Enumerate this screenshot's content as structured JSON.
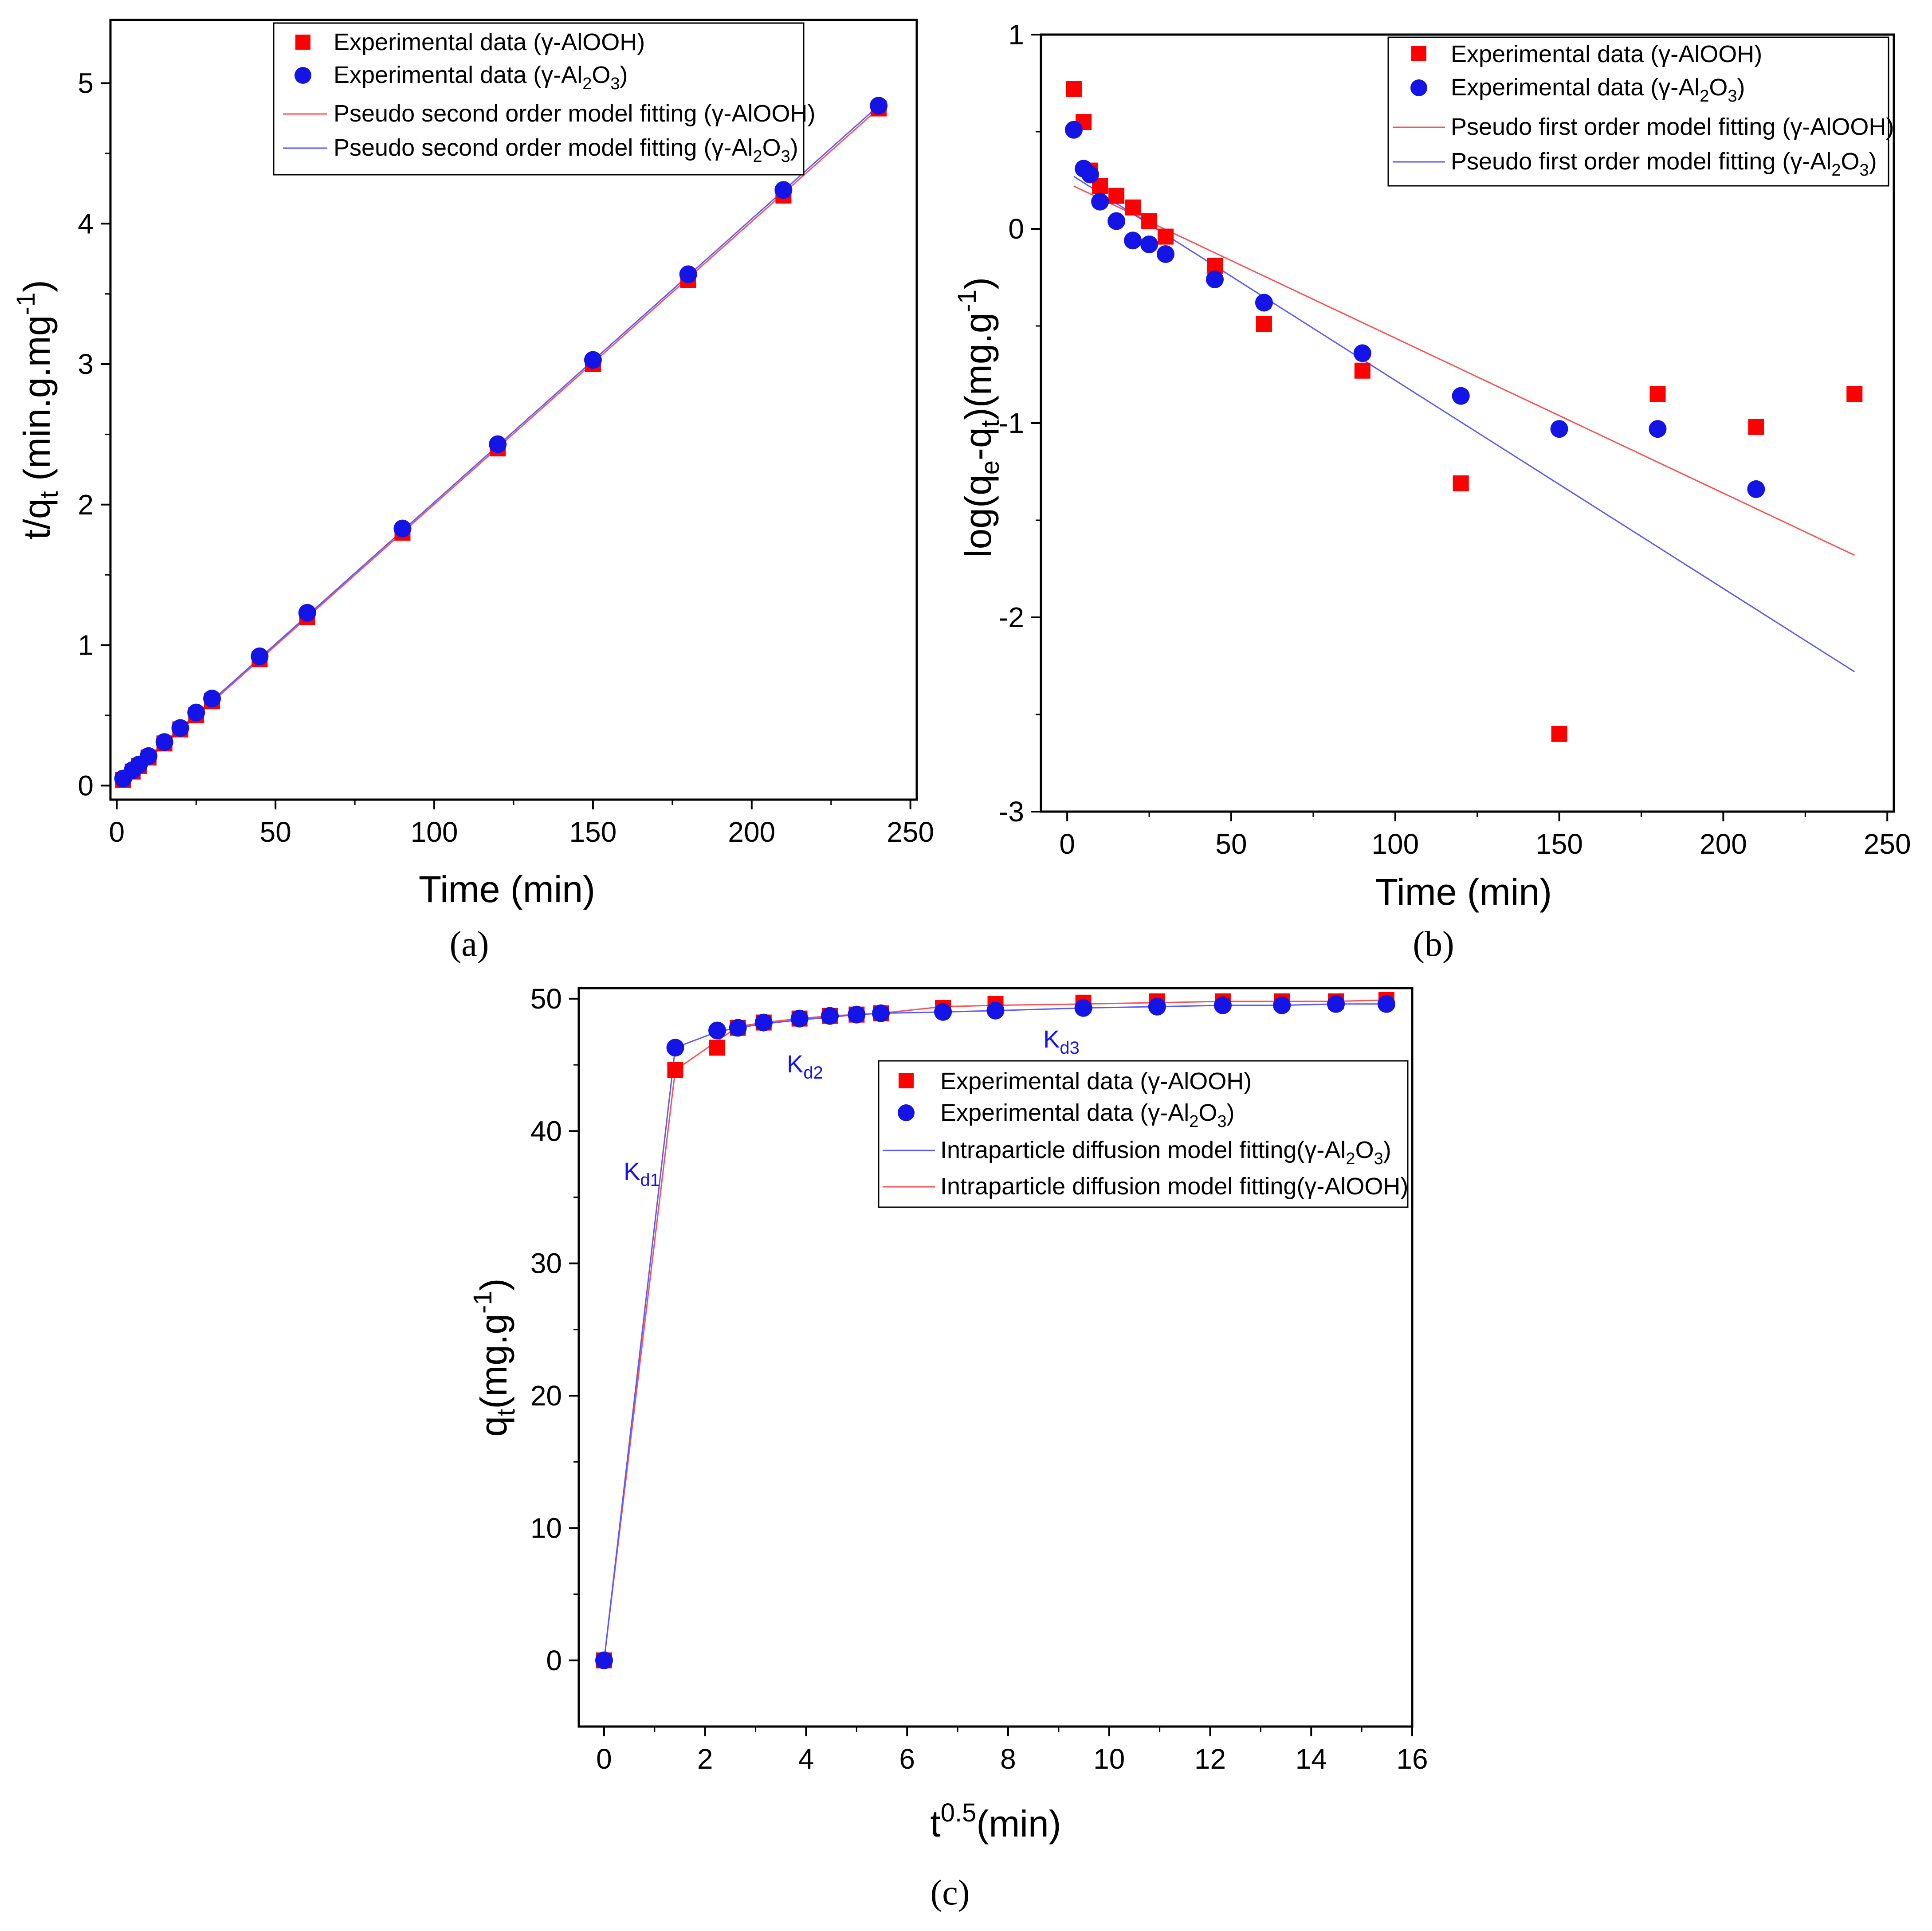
{
  "colors": {
    "red": "#ff0000",
    "blue": "#1414e6",
    "redLine": "#ff5050",
    "blueLine": "#5a5aff"
  },
  "chart_data": [
    {
      "id": "a",
      "type": "scatter",
      "panel_label": "(a)",
      "xlabel": "Time (min)",
      "ylabel_main": "t/q",
      "ylabel_sub": "t",
      "ylabel_rest": " (min.g.mg",
      "ylabel_sup": "-1",
      "ylabel_end": ")",
      "xlim": [
        -2,
        252
      ],
      "ylim": [
        -0.1,
        5.45
      ],
      "xticks": [
        0,
        50,
        100,
        150,
        200,
        250
      ],
      "yticks": [
        0,
        1,
        2,
        3,
        4,
        5
      ],
      "legend": [
        {
          "main": "Experimental data (γ-AlOOH)",
          "kind": "square",
          "color": "red"
        },
        {
          "main": "Experimental data (γ-Al",
          "sub1": "2",
          "mid": "O",
          "sub2": "3",
          "end": ")",
          "kind": "circle",
          "color": "blue"
        },
        {
          "main": "Pseudo second order model fitting (γ-AlOOH)",
          "kind": "line",
          "color": "redLine"
        },
        {
          "main": "Pseudo second order model fitting (γ-Al",
          "sub1": "2",
          "mid": "O",
          "sub2": "3",
          "end": ")",
          "kind": "line",
          "color": "blueLine"
        }
      ],
      "series": [
        {
          "name": "Experimental data (γ-AlOOH)",
          "kind": "square",
          "color": "red",
          "x": [
            2,
            5,
            7,
            10,
            15,
            20,
            25,
            30,
            45,
            60,
            90,
            120,
            150,
            180,
            210,
            240
          ],
          "y": [
            0.04,
            0.1,
            0.14,
            0.2,
            0.3,
            0.4,
            0.5,
            0.6,
            0.9,
            1.2,
            1.8,
            2.4,
            3.0,
            3.6,
            4.2,
            4.82
          ]
        },
        {
          "name": "Experimental data (γ-Al2O3)",
          "kind": "circle",
          "color": "blue",
          "x": [
            2,
            5,
            7,
            10,
            15,
            20,
            25,
            30,
            45,
            60,
            90,
            120,
            150,
            180,
            210,
            240
          ],
          "y": [
            0.05,
            0.11,
            0.15,
            0.21,
            0.31,
            0.41,
            0.52,
            0.62,
            0.92,
            1.23,
            1.83,
            2.43,
            3.03,
            3.64,
            4.24,
            4.84
          ]
        },
        {
          "name": "Pseudo second order model fitting (γ-AlOOH)",
          "kind": "line",
          "color": "redLine",
          "x": [
            2,
            240
          ],
          "y": [
            0.03,
            4.82
          ]
        },
        {
          "name": "Pseudo second order model fitting (γ-Al2O3)",
          "kind": "line",
          "color": "blueLine",
          "x": [
            2,
            240
          ],
          "y": [
            0.04,
            4.84
          ]
        }
      ]
    },
    {
      "id": "b",
      "type": "scatter",
      "panel_label": "(b)",
      "xlabel": "Time (min)",
      "ylabel_main": "log(q",
      "ylabel_sub": "e",
      "ylabel_rest": "-q",
      "ylabel_sub2": "t",
      "ylabel_end": ")(mg.g",
      "ylabel_sup": "-1",
      "ylabel_close": ")",
      "xlim": [
        -8,
        252
      ],
      "ylim": [
        -3,
        1
      ],
      "xticks": [
        0,
        50,
        100,
        150,
        200,
        250
      ],
      "yticks": [
        1,
        0,
        -1,
        -2,
        -3
      ],
      "legend": [
        {
          "main": "Experimental data (γ-AlOOH)",
          "kind": "square",
          "color": "red"
        },
        {
          "main": "Experimental data (γ-Al",
          "sub1": "2",
          "mid": "O",
          "sub2": "3",
          "end": ")",
          "kind": "circle",
          "color": "blue"
        },
        {
          "main": "Pseudo first order model fitting (γ-AlOOH)",
          "kind": "line",
          "color": "redLine"
        },
        {
          "main": "Pseudo first order model fitting (γ-Al",
          "sub1": "2",
          "mid": "O",
          "sub2": "3",
          "end": ")",
          "kind": "line",
          "color": "blueLine"
        }
      ],
      "series": [
        {
          "name": "Experimental data (γ-AlOOH)",
          "kind": "square",
          "color": "red",
          "x": [
            2,
            5,
            7,
            10,
            15,
            20,
            25,
            30,
            45,
            60,
            90,
            120,
            150,
            180,
            210,
            240
          ],
          "y": [
            0.72,
            0.55,
            0.3,
            0.22,
            0.17,
            0.11,
            0.04,
            -0.04,
            -0.19,
            -0.49,
            -0.73,
            -1.31,
            -2.6,
            -0.85,
            -1.02,
            -0.85
          ]
        },
        {
          "name": "Experimental data (γ-Al2O3)",
          "kind": "circle",
          "color": "blue",
          "x": [
            2,
            5,
            7,
            10,
            15,
            20,
            25,
            30,
            45,
            60,
            90,
            120,
            150,
            180,
            210
          ],
          "y": [
            0.51,
            0.31,
            0.28,
            0.14,
            0.04,
            -0.06,
            -0.08,
            -0.13,
            -0.26,
            -0.38,
            -0.64,
            -0.86,
            -1.03,
            -1.03,
            -1.34
          ]
        },
        {
          "name": "Pseudo first order model fitting (γ-AlOOH)",
          "kind": "line",
          "color": "redLine",
          "x": [
            2,
            240
          ],
          "y": [
            0.22,
            -1.68
          ]
        },
        {
          "name": "Pseudo first order model fitting (γ-Al2O3)",
          "kind": "line",
          "color": "blueLine",
          "x": [
            2,
            240
          ],
          "y": [
            0.27,
            -2.28
          ]
        }
      ]
    },
    {
      "id": "c",
      "type": "scatter",
      "panel_label": "(c)",
      "xlabel_main": "t",
      "xlabel_sup": "0.5",
      "xlabel_end": "(min)",
      "ylabel_main": "q",
      "ylabel_sub": "t",
      "ylabel_rest": "(mg.g",
      "ylabel_sup": "-1",
      "ylabel_end": ")",
      "xlim": [
        -0.5,
        16
      ],
      "ylim": [
        -5,
        50.8
      ],
      "xticks": [
        0,
        2,
        4,
        6,
        8,
        10,
        12,
        14,
        16
      ],
      "yticks": [
        0,
        10,
        20,
        30,
        40,
        50
      ],
      "annotations": [
        {
          "main": "K",
          "sub": "d1"
        },
        {
          "main": "K",
          "sub": "d2"
        },
        {
          "main": "K",
          "sub": "d3"
        }
      ],
      "legend": [
        {
          "main": "Experimental data (γ-AlOOH)",
          "kind": "square",
          "color": "red"
        },
        {
          "main": "Experimental data (γ-Al",
          "sub1": "2",
          "mid": "O",
          "sub2": "3",
          "end": ")",
          "kind": "circle",
          "color": "blue"
        },
        {
          "main": "Intraparticle diffusion model fitting(γ-Al",
          "sub1": "2",
          "mid": "O",
          "sub2": "3",
          "end": ")",
          "kind": "line",
          "color": "blueLine"
        },
        {
          "main": "Intraparticle diffusion model fitting(γ-AlOOH)",
          "kind": "line",
          "color": "redLine"
        }
      ],
      "series": [
        {
          "name": "Experimental data (γ-AlOOH)",
          "kind": "square",
          "color": "red",
          "x": [
            0,
            1.41,
            2.24,
            2.65,
            3.16,
            3.87,
            4.47,
            5.0,
            5.48,
            6.71,
            7.75,
            9.49,
            10.95,
            12.25,
            13.42,
            14.49,
            15.49
          ],
          "y": [
            0,
            44.6,
            46.3,
            47.8,
            48.2,
            48.5,
            48.7,
            48.8,
            48.9,
            49.3,
            49.6,
            49.7,
            49.8,
            49.8,
            49.8,
            49.8,
            49.9
          ]
        },
        {
          "name": "Experimental data (γ-Al2O3)",
          "kind": "circle",
          "color": "blue",
          "x": [
            0,
            1.41,
            2.24,
            2.65,
            3.16,
            3.87,
            4.47,
            5.0,
            5.48,
            6.71,
            7.75,
            9.49,
            10.95,
            12.25,
            13.42,
            14.49,
            15.49
          ],
          "y": [
            0,
            46.3,
            47.6,
            47.8,
            48.2,
            48.5,
            48.7,
            48.8,
            48.9,
            49.0,
            49.1,
            49.3,
            49.4,
            49.5,
            49.5,
            49.6,
            49.6
          ]
        },
        {
          "name": "Intraparticle diffusion model fitting (γ-AlOOH)",
          "kind": "line",
          "color": "redLine",
          "x": [
            0,
            1.41,
            2.24,
            2.65,
            3.16,
            3.87,
            4.47,
            5.0,
            5.48,
            6.71,
            7.75,
            9.49,
            10.95,
            12.25,
            13.42,
            14.49,
            15.49
          ],
          "y": [
            0,
            44.6,
            46.8,
            47.9,
            48.2,
            48.5,
            48.7,
            48.8,
            48.9,
            49.4,
            49.5,
            49.6,
            49.7,
            49.8,
            49.8,
            49.8,
            49.9
          ]
        },
        {
          "name": "Intraparticle diffusion model fitting (γ-Al2O3)",
          "kind": "line",
          "color": "blueLine",
          "x": [
            0,
            1.41,
            2.24,
            2.65,
            3.16,
            3.87,
            4.47,
            5.0,
            5.48,
            6.71,
            7.75,
            9.49,
            10.95,
            12.25,
            13.42,
            14.49,
            15.49
          ],
          "y": [
            0,
            46.3,
            47.5,
            47.8,
            48.1,
            48.4,
            48.6,
            48.8,
            48.9,
            49.0,
            49.1,
            49.3,
            49.4,
            49.5,
            49.5,
            49.6,
            49.6
          ]
        }
      ]
    }
  ]
}
